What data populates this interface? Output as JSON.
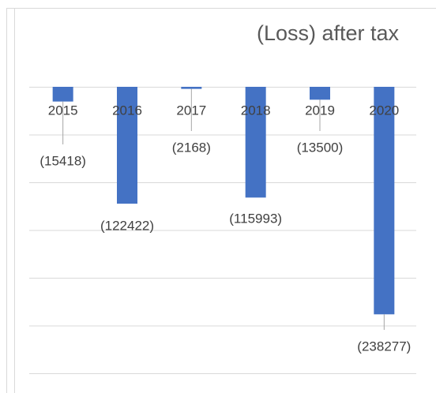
{
  "chart_data": {
    "type": "bar",
    "title": "(Loss) after tax",
    "categories": [
      "2015",
      "2016",
      "2017",
      "2018",
      "2019",
      "2020"
    ],
    "values": [
      -15418,
      -122422,
      -2168,
      -115993,
      -13500,
      -238277
    ],
    "value_labels": [
      "(15418)",
      "(122422)",
      "(2168)",
      "(115993)",
      "(13500)",
      "(238277)"
    ],
    "color": "#4472c4",
    "ylim": [
      -300000,
      0
    ],
    "yticks": [
      0,
      -50000,
      -100000,
      -150000,
      -200000,
      -250000,
      -300000
    ],
    "ytick_labels": false,
    "grid": true
  }
}
